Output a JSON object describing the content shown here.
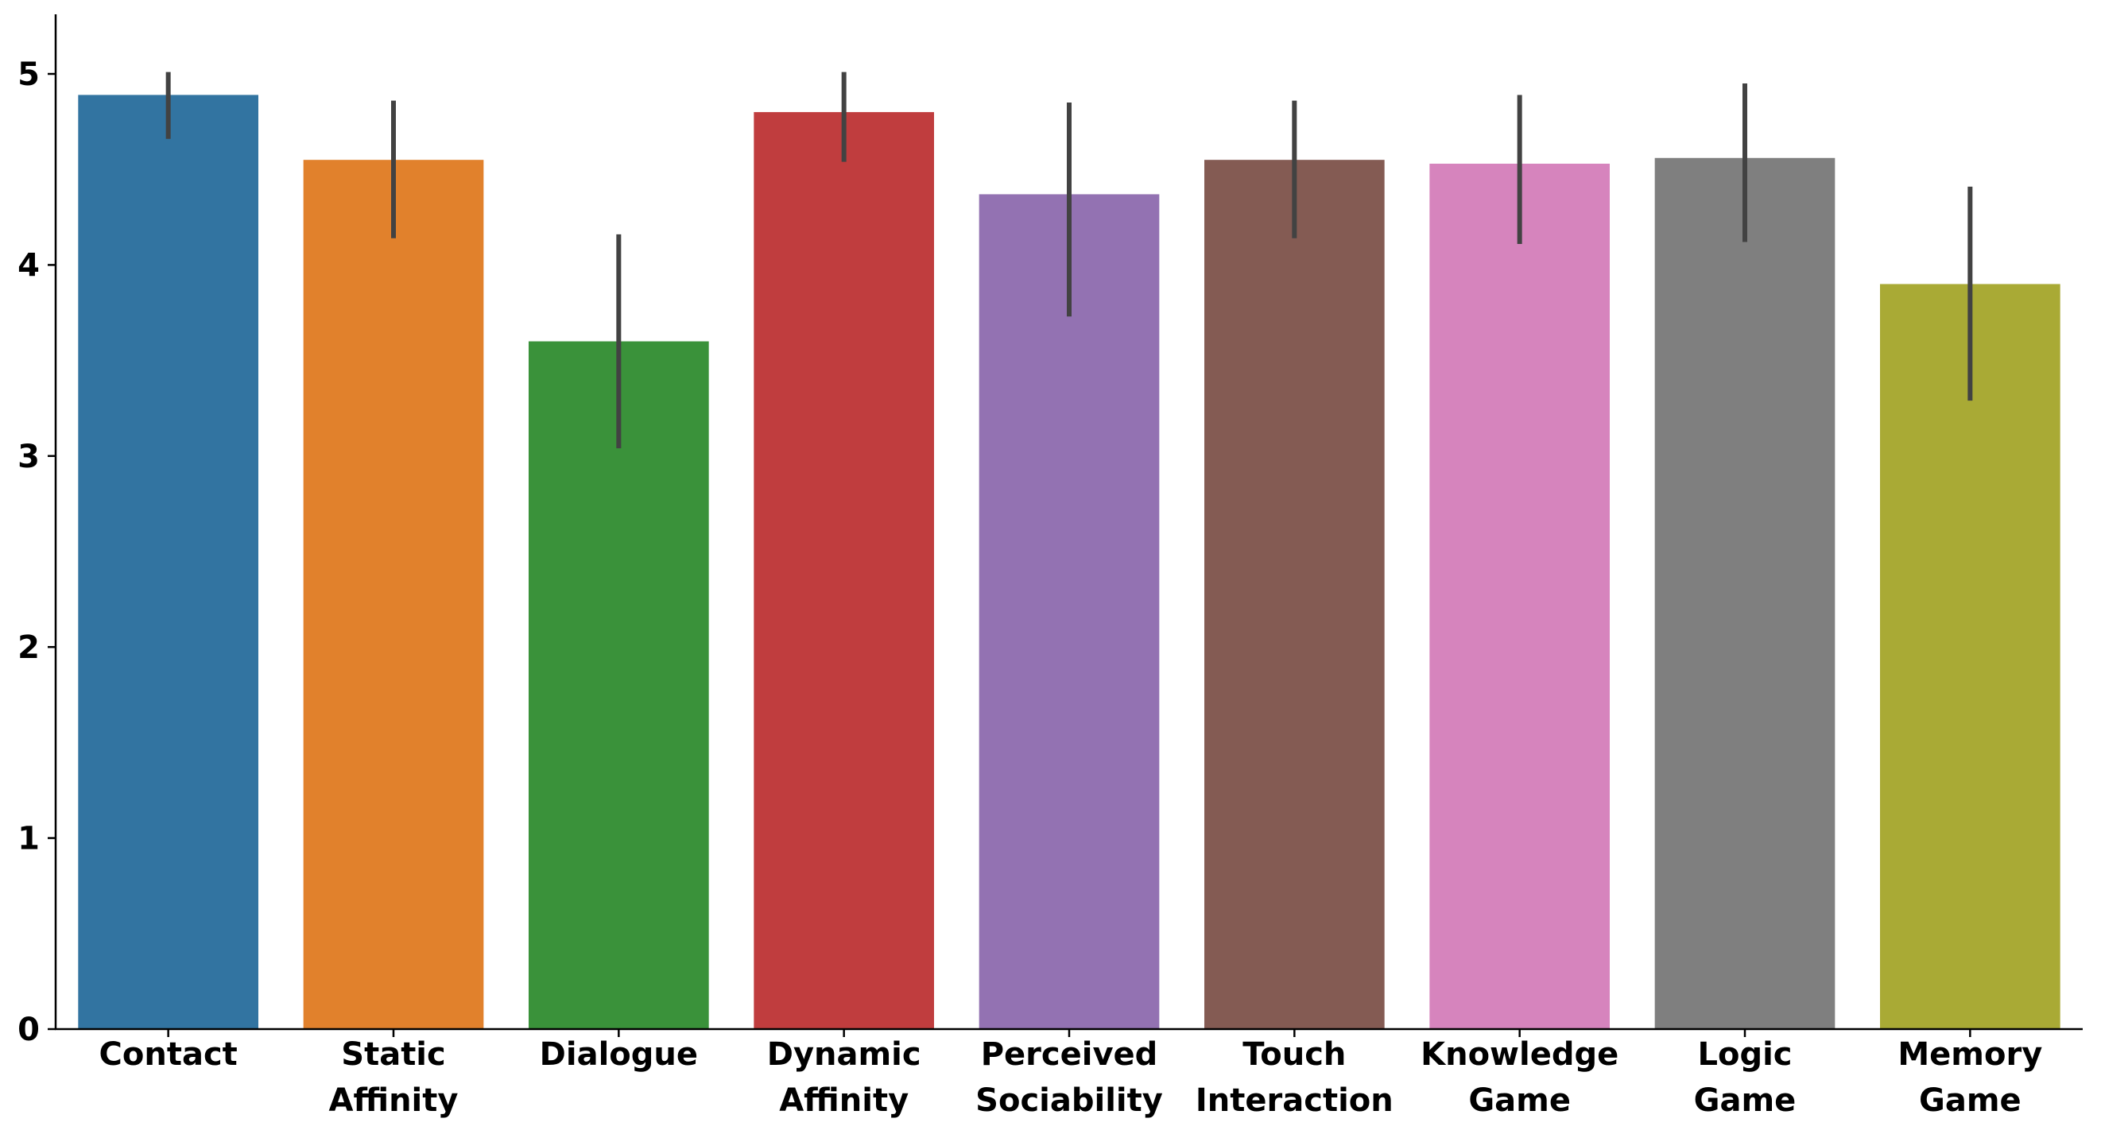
{
  "chart_data": {
    "type": "bar",
    "title": "",
    "xlabel": "",
    "ylabel": "",
    "ylim": [
      0,
      5.25
    ],
    "yticks": [
      0,
      1,
      2,
      3,
      4,
      5
    ],
    "grid": false,
    "categories": [
      [
        "Contact"
      ],
      [
        "Static",
        "Affinity"
      ],
      [
        "Dialogue"
      ],
      [
        "Dynamic",
        "Affinity"
      ],
      [
        "Perceived",
        "Sociability"
      ],
      [
        "Touch",
        "Interaction"
      ],
      [
        "Knowledge",
        "Game"
      ],
      [
        "Logic",
        "Game"
      ],
      [
        "Memory",
        "Game"
      ]
    ],
    "values": [
      4.89,
      4.55,
      3.6,
      4.8,
      4.37,
      4.55,
      4.53,
      4.56,
      3.9
    ],
    "error_low": [
      4.66,
      4.14,
      3.04,
      4.54,
      3.73,
      4.14,
      4.11,
      4.12,
      3.29
    ],
    "error_high": [
      5.01,
      4.86,
      4.16,
      5.01,
      4.85,
      4.86,
      4.89,
      4.95,
      4.41
    ],
    "colors": [
      "#3274a1",
      "#e1812c",
      "#3a923a",
      "#c03d3e",
      "#9372b2",
      "#845b53",
      "#d684bd",
      "#7f7f7f",
      "#a9aa35"
    ],
    "errorbar_color": "#424242"
  }
}
